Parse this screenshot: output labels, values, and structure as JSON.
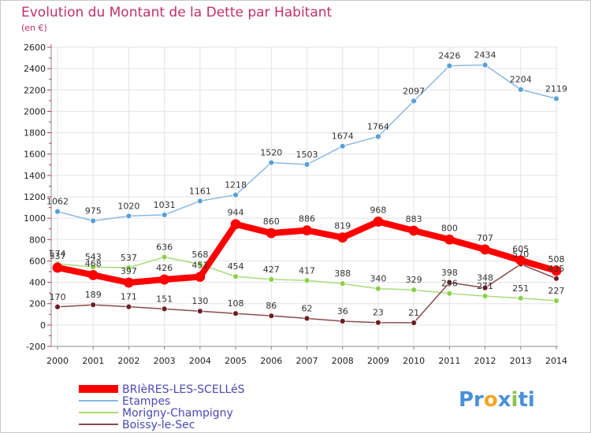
{
  "chart_data": {
    "type": "line",
    "title": "Evolution du Montant de la Dette par Habitant",
    "subtitle": "(en €)",
    "xlabel": "",
    "ylabel": "",
    "ylim": [
      -200,
      2600
    ],
    "yticks": [
      -200,
      0,
      200,
      400,
      600,
      800,
      1000,
      1200,
      1400,
      1600,
      1800,
      2000,
      2200,
      2400,
      2600
    ],
    "categories": [
      "2000",
      "2001",
      "2002",
      "2003",
      "2004",
      "2005",
      "2006",
      "2007",
      "2008",
      "2009",
      "2010",
      "2011",
      "2012",
      "2013",
      "2014"
    ],
    "grid": true,
    "legend_position": "bottom-left",
    "series": [
      {
        "name": "Etampes",
        "color": "#5b9fd6",
        "line_color": "#8ab8e2",
        "values": [
          1062,
          975,
          1020,
          1031,
          1161,
          1218,
          1520,
          1503,
          1674,
          1764,
          2097,
          2426,
          2434,
          2204,
          2119
        ]
      },
      {
        "name": "Morigny-Champigny",
        "color": "#8bd04a",
        "line_color": "#a8dc7a",
        "values": [
          574,
          543,
          537,
          636,
          568,
          454,
          427,
          417,
          388,
          340,
          329,
          296,
          271,
          251,
          227
        ]
      },
      {
        "name": "Boissy-le-Sec",
        "color": "#6b1f24",
        "line_color": "#8a4a4e",
        "values": [
          170,
          189,
          171,
          151,
          130,
          108,
          86,
          62,
          36,
          23,
          21,
          398,
          348,
          570,
          435
        ]
      },
      {
        "name": "BRIèRES-LES-SCELLéS",
        "color": "#ff0000",
        "line_color": "#ff0000",
        "values": [
          537,
          468,
          397,
          426,
          451,
          944,
          860,
          886,
          819,
          968,
          883,
          800,
          707,
          605,
          508
        ]
      }
    ],
    "legend_order": [
      "BRIèRES-LES-SCELLéS",
      "Etampes",
      "Morigny-Champigny",
      "Boissy-le-Sec"
    ]
  },
  "branding": {
    "logo_parts": [
      "Pr",
      "o",
      "x",
      "i",
      "ti"
    ],
    "logo_colors": [
      "#4a90d9",
      "#f5a623",
      "#4a90d9",
      "#8bc34a",
      "#4a90d9"
    ]
  }
}
